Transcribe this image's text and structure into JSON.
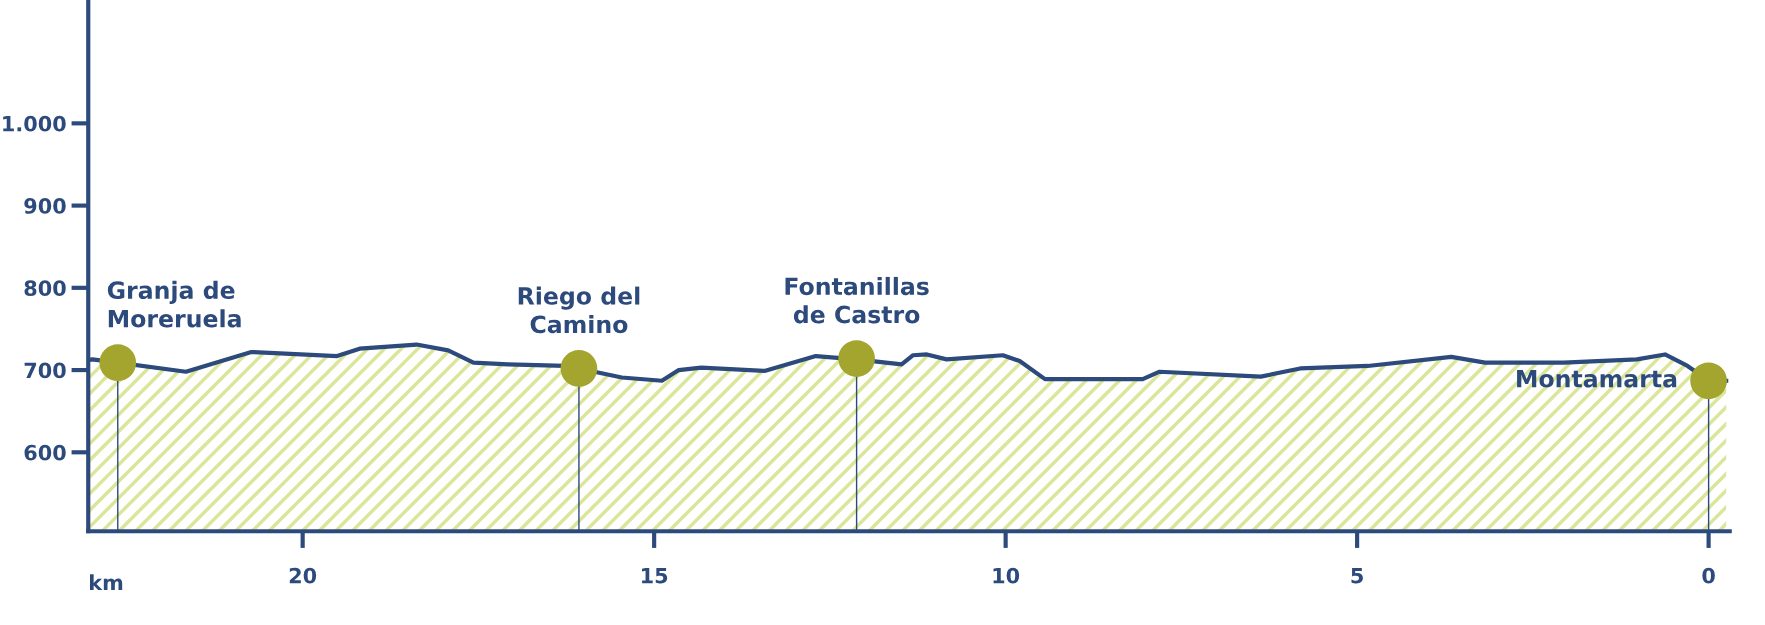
{
  "chart_data": {
    "type": "area",
    "xlabel": "km",
    "xlim": [
      23.05,
      -0.3
    ],
    "xticks": [
      20,
      15,
      10,
      5,
      0
    ],
    "ylim": [
      504,
      1150
    ],
    "yticks": [
      600,
      700,
      800,
      900,
      {
        "value": 1000,
        "label": "1.000"
      }
    ],
    "grid": false,
    "legend": false,
    "series": [
      {
        "color": "#2d4a7c",
        "x": [
          23.05,
          22.99,
          22.63,
          21.66,
          20.73,
          19.51,
          19.19,
          18.38,
          17.93,
          17.57,
          17.08,
          16.27,
          16.07,
          15.46,
          14.89,
          14.65,
          14.33,
          13.43,
          12.7,
          12.12,
          11.48,
          11.32,
          11.12,
          10.84,
          10.04,
          9.8,
          9.44,
          8.05,
          7.81,
          6.37,
          5.81,
          4.85,
          3.66,
          3.18,
          2.06,
          1.02,
          0.62,
          0.3,
          0,
          -0.25
        ],
        "values": [
          712,
          713,
          709,
          698,
          722,
          717,
          726,
          731,
          724,
          709,
          707,
          705,
          702,
          691,
          687,
          700,
          703,
          699,
          717,
          713,
          707,
          718,
          719,
          713,
          718,
          711,
          689,
          689,
          698,
          692,
          702,
          705,
          716,
          709,
          709,
          713,
          719,
          705,
          687,
          687
        ]
      },
      {
        "type": "lollipop",
        "color": "#a3a52e",
        "x": [
          22.63,
          16.07,
          12.12,
          0
        ],
        "values": [
          709,
          702,
          714,
          687
        ]
      }
    ],
    "annotations": [
      {
        "text": "Granja de\nMoreruela",
        "x": 22.63,
        "y": 709
      },
      {
        "text": "Riego del\nCamino",
        "x": 16.07,
        "y": 702
      },
      {
        "text": "Fontanillas\nde Castro",
        "x": 12.12,
        "y": 714
      },
      {
        "text": "Montamarta",
        "x": 0,
        "y": 687
      }
    ]
  }
}
